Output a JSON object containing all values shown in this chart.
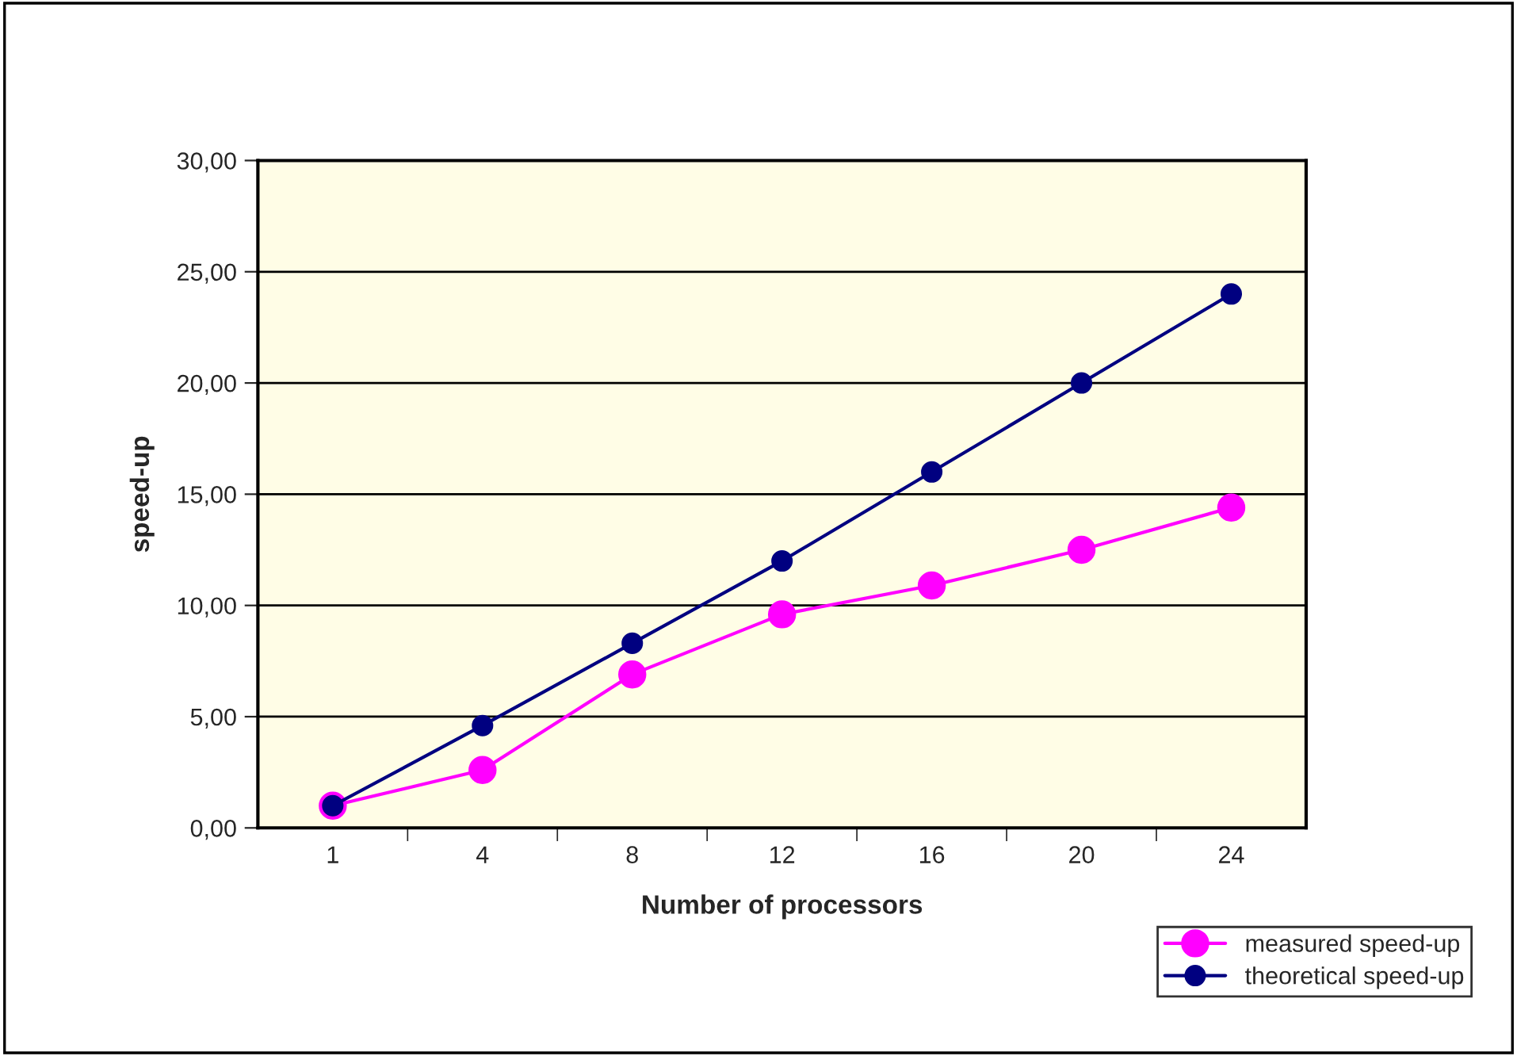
{
  "chart_data": {
    "type": "line",
    "xlabel": "Number of processors",
    "ylabel": "speed-up",
    "categories": [
      "1",
      "4",
      "8",
      "12",
      "16",
      "20",
      "24"
    ],
    "series": [
      {
        "name": "measured speed-up",
        "color": "#ff00ff",
        "values": [
          1.0,
          2.6,
          6.9,
          9.6,
          10.9,
          12.5,
          14.4
        ]
      },
      {
        "name": "theoretical speed-up",
        "color": "#000080",
        "values": [
          1.0,
          4.6,
          8.3,
          12.0,
          16.0,
          20.0,
          24.0
        ]
      }
    ],
    "ylim": [
      0,
      30
    ],
    "yticks": [
      {
        "value": 0,
        "label": "0,00"
      },
      {
        "value": 5,
        "label": "5,00"
      },
      {
        "value": 10,
        "label": "10,00"
      },
      {
        "value": 15,
        "label": "15,00"
      },
      {
        "value": 20,
        "label": "20,00"
      },
      {
        "value": 25,
        "label": "25,00"
      },
      {
        "value": 30,
        "label": "30,00"
      }
    ],
    "grid": "y",
    "legend": "bottom right",
    "marker": "circle",
    "line_style": "solid"
  }
}
